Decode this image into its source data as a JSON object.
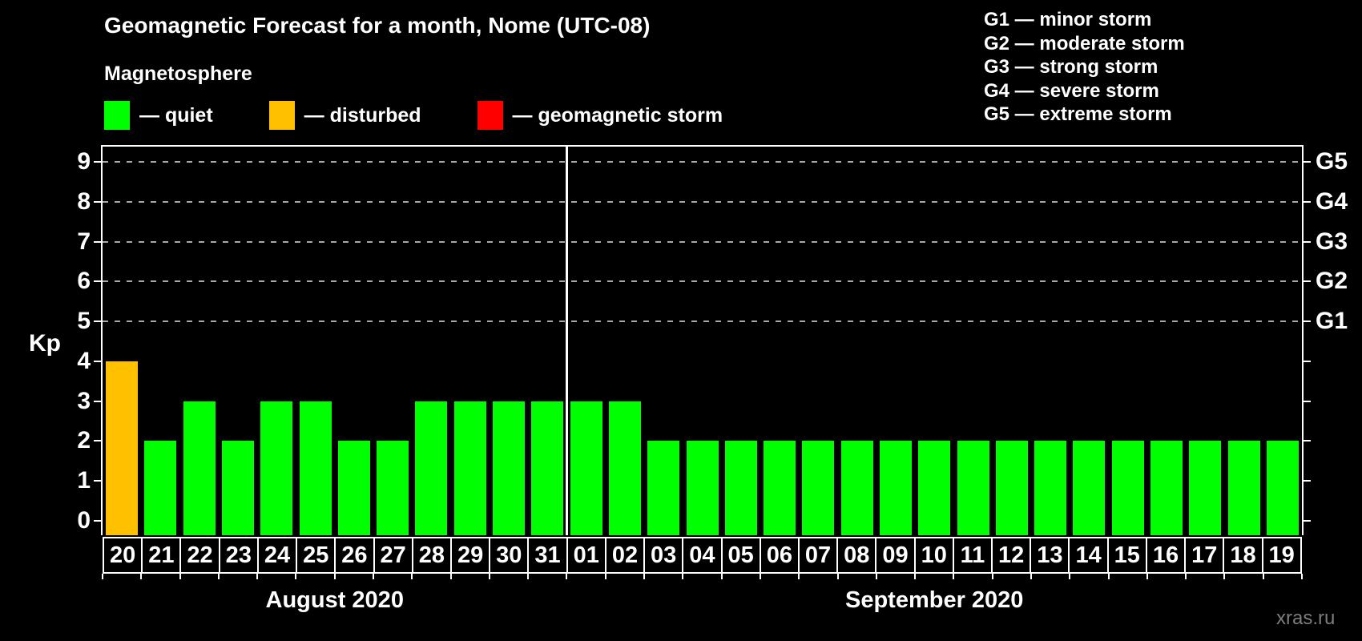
{
  "title": "Geomagnetic Forecast for a month, Nome (UTC-08)",
  "subtitle": "Magnetosphere",
  "legend": {
    "items": [
      {
        "state": "quiet",
        "label": "— quiet",
        "color": "#00ff00"
      },
      {
        "state": "disturbed",
        "label": "— disturbed",
        "color": "#ffc000"
      },
      {
        "state": "storm",
        "label": "— geomagnetic storm",
        "color": "#ff0000"
      }
    ]
  },
  "storm_legend": [
    "G1 — minor storm",
    "G2 — moderate storm",
    "G3 — strong storm",
    "G4 — severe storm",
    "G5 — extreme storm"
  ],
  "watermark": "xras.ru",
  "chart_data": {
    "type": "bar",
    "ylabel": "Kp",
    "ylim": [
      0,
      9
    ],
    "yticks": [
      0,
      1,
      2,
      3,
      4,
      5,
      6,
      7,
      8,
      9
    ],
    "gridlines_at_kp": [
      5,
      6,
      7,
      8,
      9
    ],
    "right_axis": [
      {
        "kp": 5,
        "label": "G1"
      },
      {
        "kp": 6,
        "label": "G2"
      },
      {
        "kp": 7,
        "label": "G3"
      },
      {
        "kp": 8,
        "label": "G4"
      },
      {
        "kp": 9,
        "label": "G5"
      }
    ],
    "state_colors": {
      "quiet": "#00ff00",
      "disturbed": "#ffc000",
      "storm": "#ff0000"
    },
    "grid_color": "#a8a8a8",
    "months": [
      {
        "label": "August 2020",
        "days": [
          {
            "date": "20",
            "kp": 4,
            "state": "disturbed"
          },
          {
            "date": "21",
            "kp": 2,
            "state": "quiet"
          },
          {
            "date": "22",
            "kp": 3,
            "state": "quiet"
          },
          {
            "date": "23",
            "kp": 2,
            "state": "quiet"
          },
          {
            "date": "24",
            "kp": 3,
            "state": "quiet"
          },
          {
            "date": "25",
            "kp": 3,
            "state": "quiet"
          },
          {
            "date": "26",
            "kp": 2,
            "state": "quiet"
          },
          {
            "date": "27",
            "kp": 2,
            "state": "quiet"
          },
          {
            "date": "28",
            "kp": 3,
            "state": "quiet"
          },
          {
            "date": "29",
            "kp": 3,
            "state": "quiet"
          },
          {
            "date": "30",
            "kp": 3,
            "state": "quiet"
          },
          {
            "date": "31",
            "kp": 3,
            "state": "quiet"
          }
        ]
      },
      {
        "label": "September 2020",
        "days": [
          {
            "date": "01",
            "kp": 3,
            "state": "quiet"
          },
          {
            "date": "02",
            "kp": 3,
            "state": "quiet"
          },
          {
            "date": "03",
            "kp": 2,
            "state": "quiet"
          },
          {
            "date": "04",
            "kp": 2,
            "state": "quiet"
          },
          {
            "date": "05",
            "kp": 2,
            "state": "quiet"
          },
          {
            "date": "06",
            "kp": 2,
            "state": "quiet"
          },
          {
            "date": "07",
            "kp": 2,
            "state": "quiet"
          },
          {
            "date": "08",
            "kp": 2,
            "state": "quiet"
          },
          {
            "date": "09",
            "kp": 2,
            "state": "quiet"
          },
          {
            "date": "10",
            "kp": 2,
            "state": "quiet"
          },
          {
            "date": "11",
            "kp": 2,
            "state": "quiet"
          },
          {
            "date": "12",
            "kp": 2,
            "state": "quiet"
          },
          {
            "date": "13",
            "kp": 2,
            "state": "quiet"
          },
          {
            "date": "14",
            "kp": 2,
            "state": "quiet"
          },
          {
            "date": "15",
            "kp": 2,
            "state": "quiet"
          },
          {
            "date": "16",
            "kp": 2,
            "state": "quiet"
          },
          {
            "date": "17",
            "kp": 2,
            "state": "quiet"
          },
          {
            "date": "18",
            "kp": 2,
            "state": "quiet"
          },
          {
            "date": "19",
            "kp": 2,
            "state": "quiet"
          }
        ]
      }
    ]
  }
}
